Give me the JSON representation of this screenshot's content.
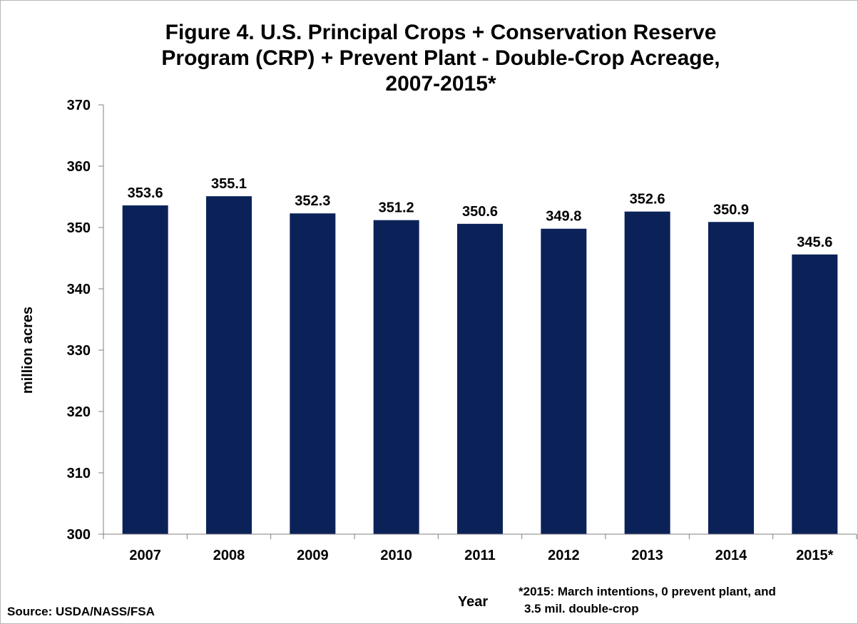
{
  "chart_data": {
    "type": "bar",
    "title_lines": [
      "Figure 4. U.S. Principal Crops + Conservation Reserve",
      "Program (CRP) + Prevent Plant - Double-Crop Acreage,",
      "2007-2015*"
    ],
    "xlabel": "Year",
    "ylabel": "million acres",
    "ylim": [
      300,
      370
    ],
    "yticks": [
      300,
      310,
      320,
      330,
      340,
      350,
      360,
      370
    ],
    "categories": [
      "2007",
      "2008",
      "2009",
      "2010",
      "2011",
      "2012",
      "2013",
      "2014",
      "2015*"
    ],
    "values": [
      353.6,
      355.1,
      352.3,
      351.2,
      350.6,
      349.8,
      352.6,
      350.9,
      345.6
    ],
    "data_labels": [
      "353.6",
      "355.1",
      "352.3",
      "351.2",
      "350.6",
      "349.8",
      "352.6",
      "350.9",
      "345.6"
    ],
    "bar_color": "#0b2259",
    "grid": false,
    "legend": "none"
  },
  "source": "Source: USDA/NASS/FSA",
  "footnote_lines": [
    "*2015: March intentions, 0 prevent plant, and",
    "3.5 mil. double-crop"
  ]
}
